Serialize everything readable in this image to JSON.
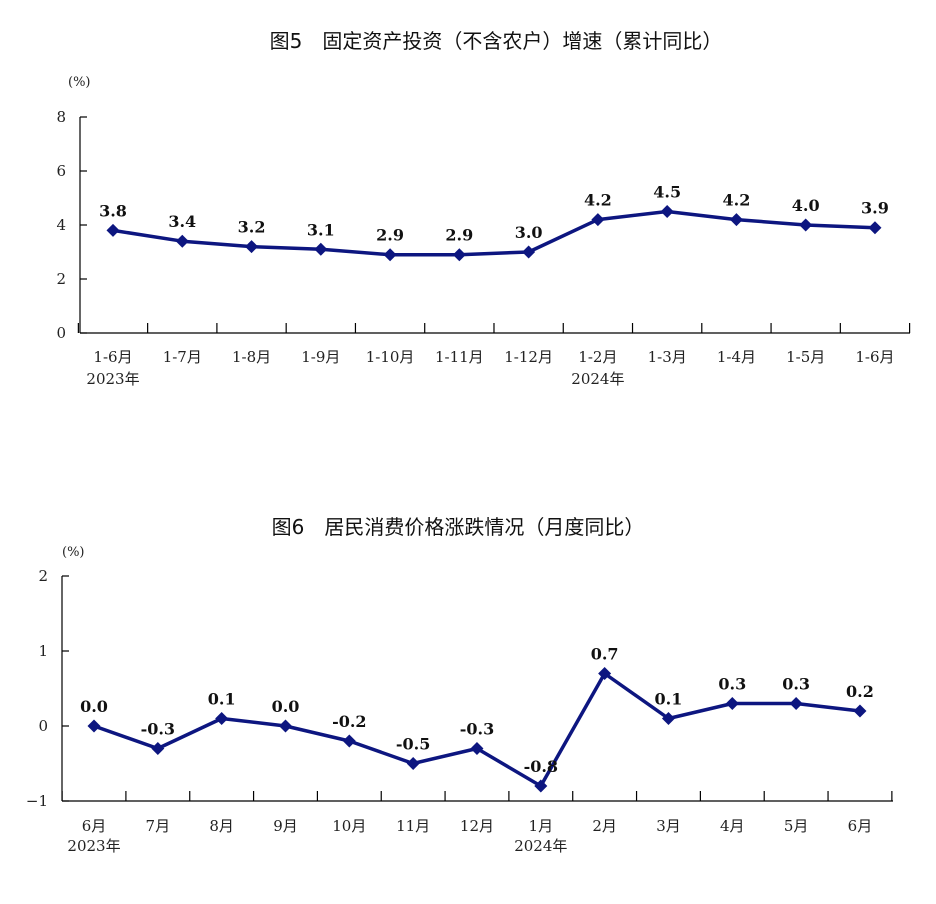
{
  "chart_data": [
    {
      "type": "line",
      "title": "图5　固定资产投资（不含农户）增速（累计同比）",
      "unit": "(%)",
      "categories": [
        "1-6月",
        "1-7月",
        "1-8月",
        "1-9月",
        "1-10月",
        "1-11月",
        "1-12月",
        "1-2月",
        "1-3月",
        "1-4月",
        "1-5月",
        "1-6月"
      ],
      "year_labels": [
        {
          "index": 0,
          "text": "2023年"
        },
        {
          "index": 7,
          "text": "2024年"
        }
      ],
      "values": [
        3.8,
        3.4,
        3.2,
        3.1,
        2.9,
        2.9,
        3.0,
        4.2,
        4.5,
        4.2,
        4.0,
        3.9
      ],
      "data_labels": [
        "3.8",
        "3.4",
        "3.2",
        "3.1",
        "2.9",
        "2.9",
        "3.0",
        "4.2",
        "4.5",
        "4.2",
        "4.0",
        "3.9"
      ],
      "yticks": [
        "0",
        "2",
        "4",
        "6",
        "8"
      ],
      "ylim": [
        0,
        8
      ],
      "grid": false,
      "color": "#0d1680"
    },
    {
      "type": "line",
      "title": "图6　居民消费价格涨跌情况（月度同比）",
      "unit": "(%)",
      "categories": [
        "6月",
        "7月",
        "8月",
        "9月",
        "10月",
        "11月",
        "12月",
        "1月",
        "2月",
        "3月",
        "4月",
        "5月",
        "6月"
      ],
      "year_labels": [
        {
          "index": 0,
          "text": "2023年"
        },
        {
          "index": 7,
          "text": "2024年"
        }
      ],
      "values": [
        0.0,
        -0.3,
        0.1,
        0.0,
        -0.2,
        -0.5,
        -0.3,
        -0.8,
        0.7,
        0.1,
        0.3,
        0.3,
        0.2
      ],
      "data_labels": [
        "0.0",
        "-0.3",
        "0.1",
        "0.0",
        "-0.2",
        "-0.5",
        "-0.3",
        "-0.8",
        "0.7",
        "0.1",
        "0.3",
        "0.3",
        "0.2"
      ],
      "yticks": [
        "−1",
        "0",
        "1",
        "2"
      ],
      "ylim": [
        -1,
        2
      ],
      "grid": false,
      "color": "#0d1680"
    }
  ]
}
